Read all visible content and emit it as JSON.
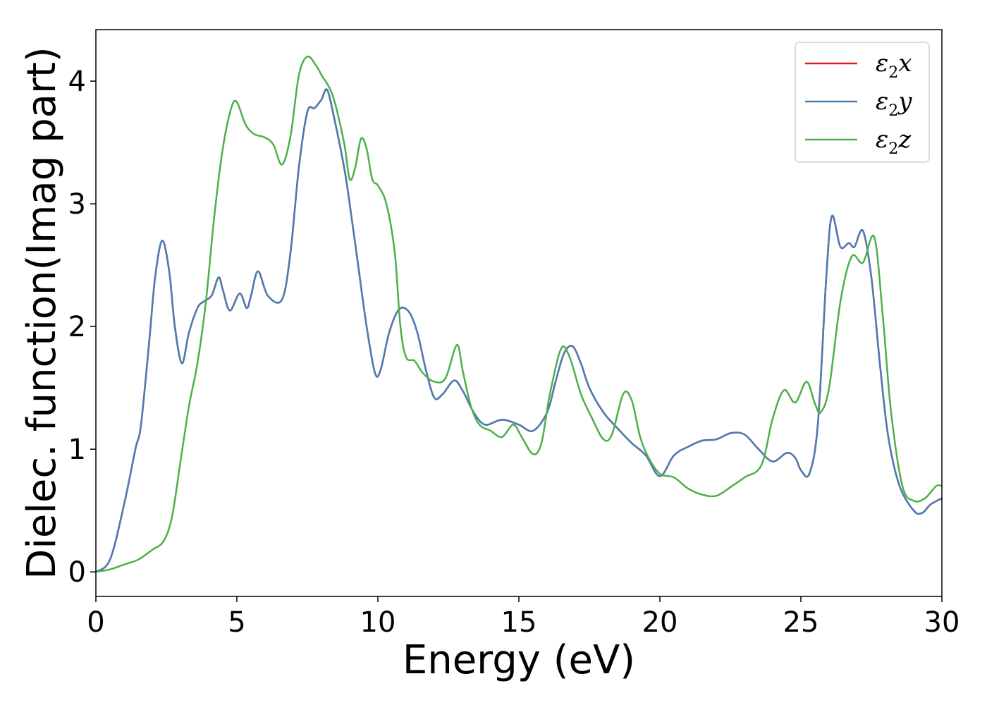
{
  "chart_data": {
    "type": "line",
    "title": "",
    "xlabel": "Energy (eV)",
    "ylabel": "Dielec. function(Imag part)",
    "xlim": [
      0,
      30
    ],
    "ylim": [
      -0.2,
      4.42
    ],
    "xticks": [
      "0",
      "5",
      "10",
      "15",
      "20",
      "25",
      "30"
    ],
    "yticks": [
      "0",
      "1",
      "2",
      "3",
      "4"
    ],
    "grid": false,
    "legend_position": "top-right",
    "series": [
      {
        "name": "ε₂x",
        "legend_main": "ε",
        "legend_sub": "2",
        "legend_tail": "x",
        "color": "#e41a1c",
        "points": [
          [
            0,
            0
          ],
          [
            0.5,
            0.1
          ],
          [
            1,
            0.55
          ],
          [
            1.4,
            1.0
          ],
          [
            1.6,
            1.2
          ],
          [
            1.9,
            1.9
          ],
          [
            2.1,
            2.4
          ],
          [
            2.35,
            2.7
          ],
          [
            2.6,
            2.45
          ],
          [
            2.8,
            2.0
          ],
          [
            3.05,
            1.7
          ],
          [
            3.3,
            1.95
          ],
          [
            3.6,
            2.15
          ],
          [
            3.8,
            2.2
          ],
          [
            4.1,
            2.25
          ],
          [
            4.35,
            2.4
          ],
          [
            4.5,
            2.3
          ],
          [
            4.75,
            2.13
          ],
          [
            5.1,
            2.27
          ],
          [
            5.35,
            2.15
          ],
          [
            5.5,
            2.25
          ],
          [
            5.75,
            2.45
          ],
          [
            6.1,
            2.25
          ],
          [
            6.6,
            2.22
          ],
          [
            6.9,
            2.6
          ],
          [
            7.2,
            3.3
          ],
          [
            7.5,
            3.75
          ],
          [
            7.75,
            3.78
          ],
          [
            8.0,
            3.85
          ],
          [
            8.2,
            3.93
          ],
          [
            8.45,
            3.7
          ],
          [
            8.8,
            3.3
          ],
          [
            9.0,
            3.0
          ],
          [
            9.3,
            2.5
          ],
          [
            9.6,
            2.0
          ],
          [
            9.9,
            1.62
          ],
          [
            10.1,
            1.65
          ],
          [
            10.4,
            1.95
          ],
          [
            10.75,
            2.14
          ],
          [
            11.1,
            2.12
          ],
          [
            11.4,
            1.95
          ],
          [
            11.7,
            1.65
          ],
          [
            12.0,
            1.42
          ],
          [
            12.3,
            1.45
          ],
          [
            12.7,
            1.56
          ],
          [
            13.0,
            1.48
          ],
          [
            13.4,
            1.3
          ],
          [
            13.8,
            1.2
          ],
          [
            14.4,
            1.24
          ],
          [
            15.0,
            1.2
          ],
          [
            15.5,
            1.15
          ],
          [
            16.0,
            1.3
          ],
          [
            16.3,
            1.55
          ],
          [
            16.6,
            1.78
          ],
          [
            16.9,
            1.84
          ],
          [
            17.2,
            1.7
          ],
          [
            17.5,
            1.5
          ],
          [
            18.0,
            1.3
          ],
          [
            18.5,
            1.17
          ],
          [
            19.0,
            1.05
          ],
          [
            19.5,
            0.95
          ],
          [
            20.0,
            0.78
          ],
          [
            20.5,
            0.95
          ],
          [
            21.0,
            1.02
          ],
          [
            21.5,
            1.07
          ],
          [
            22.0,
            1.08
          ],
          [
            22.5,
            1.13
          ],
          [
            23.0,
            1.12
          ],
          [
            23.5,
            1.0
          ],
          [
            24.0,
            0.9
          ],
          [
            24.5,
            0.97
          ],
          [
            24.8,
            0.93
          ],
          [
            25.0,
            0.83
          ],
          [
            25.3,
            0.8
          ],
          [
            25.6,
            1.2
          ],
          [
            25.9,
            2.4
          ],
          [
            26.1,
            2.9
          ],
          [
            26.4,
            2.65
          ],
          [
            26.7,
            2.68
          ],
          [
            26.9,
            2.65
          ],
          [
            27.2,
            2.78
          ],
          [
            27.5,
            2.4
          ],
          [
            27.8,
            1.7
          ],
          [
            28.1,
            1.1
          ],
          [
            28.5,
            0.7
          ],
          [
            29.0,
            0.5
          ],
          [
            29.3,
            0.48
          ],
          [
            29.6,
            0.55
          ],
          [
            30.0,
            0.6
          ]
        ]
      },
      {
        "name": "ε₂y",
        "legend_main": "ε",
        "legend_sub": "2",
        "legend_tail": "y",
        "color": "#4a7db5",
        "points": [
          [
            0,
            0
          ],
          [
            0.5,
            0.1
          ],
          [
            1,
            0.55
          ],
          [
            1.4,
            1.0
          ],
          [
            1.6,
            1.2
          ],
          [
            1.9,
            1.9
          ],
          [
            2.1,
            2.4
          ],
          [
            2.35,
            2.7
          ],
          [
            2.6,
            2.45
          ],
          [
            2.8,
            2.0
          ],
          [
            3.05,
            1.7
          ],
          [
            3.3,
            1.95
          ],
          [
            3.6,
            2.15
          ],
          [
            3.8,
            2.2
          ],
          [
            4.1,
            2.25
          ],
          [
            4.35,
            2.4
          ],
          [
            4.5,
            2.3
          ],
          [
            4.75,
            2.13
          ],
          [
            5.1,
            2.27
          ],
          [
            5.35,
            2.15
          ],
          [
            5.5,
            2.25
          ],
          [
            5.75,
            2.45
          ],
          [
            6.1,
            2.25
          ],
          [
            6.6,
            2.22
          ],
          [
            6.9,
            2.6
          ],
          [
            7.2,
            3.3
          ],
          [
            7.5,
            3.75
          ],
          [
            7.75,
            3.78
          ],
          [
            8.0,
            3.85
          ],
          [
            8.2,
            3.93
          ],
          [
            8.45,
            3.7
          ],
          [
            8.8,
            3.3
          ],
          [
            9.0,
            3.0
          ],
          [
            9.3,
            2.5
          ],
          [
            9.6,
            2.0
          ],
          [
            9.9,
            1.62
          ],
          [
            10.1,
            1.65
          ],
          [
            10.4,
            1.95
          ],
          [
            10.75,
            2.14
          ],
          [
            11.1,
            2.12
          ],
          [
            11.4,
            1.95
          ],
          [
            11.7,
            1.65
          ],
          [
            12.0,
            1.42
          ],
          [
            12.3,
            1.45
          ],
          [
            12.7,
            1.56
          ],
          [
            13.0,
            1.48
          ],
          [
            13.4,
            1.3
          ],
          [
            13.8,
            1.2
          ],
          [
            14.4,
            1.24
          ],
          [
            15.0,
            1.2
          ],
          [
            15.5,
            1.15
          ],
          [
            16.0,
            1.3
          ],
          [
            16.3,
            1.55
          ],
          [
            16.6,
            1.78
          ],
          [
            16.9,
            1.84
          ],
          [
            17.2,
            1.7
          ],
          [
            17.5,
            1.5
          ],
          [
            18.0,
            1.3
          ],
          [
            18.5,
            1.17
          ],
          [
            19.0,
            1.05
          ],
          [
            19.5,
            0.95
          ],
          [
            20.0,
            0.78
          ],
          [
            20.5,
            0.95
          ],
          [
            21.0,
            1.02
          ],
          [
            21.5,
            1.07
          ],
          [
            22.0,
            1.08
          ],
          [
            22.5,
            1.13
          ],
          [
            23.0,
            1.12
          ],
          [
            23.5,
            1.0
          ],
          [
            24.0,
            0.9
          ],
          [
            24.5,
            0.97
          ],
          [
            24.8,
            0.93
          ],
          [
            25.0,
            0.83
          ],
          [
            25.3,
            0.8
          ],
          [
            25.6,
            1.2
          ],
          [
            25.9,
            2.4
          ],
          [
            26.1,
            2.9
          ],
          [
            26.4,
            2.65
          ],
          [
            26.7,
            2.68
          ],
          [
            26.9,
            2.65
          ],
          [
            27.2,
            2.78
          ],
          [
            27.5,
            2.4
          ],
          [
            27.8,
            1.7
          ],
          [
            28.1,
            1.1
          ],
          [
            28.5,
            0.7
          ],
          [
            29.0,
            0.5
          ],
          [
            29.3,
            0.48
          ],
          [
            29.6,
            0.55
          ],
          [
            30.0,
            0.6
          ]
        ]
      },
      {
        "name": "ε₂z",
        "legend_main": "ε",
        "legend_sub": "2",
        "legend_tail": "z",
        "color": "#4daf4a",
        "points": [
          [
            0,
            0
          ],
          [
            0.5,
            0.02
          ],
          [
            1,
            0.06
          ],
          [
            1.5,
            0.1
          ],
          [
            2.0,
            0.18
          ],
          [
            2.4,
            0.25
          ],
          [
            2.7,
            0.45
          ],
          [
            3.0,
            0.9
          ],
          [
            3.3,
            1.35
          ],
          [
            3.6,
            1.7
          ],
          [
            3.9,
            2.2
          ],
          [
            4.2,
            2.9
          ],
          [
            4.5,
            3.45
          ],
          [
            4.8,
            3.78
          ],
          [
            5.0,
            3.83
          ],
          [
            5.3,
            3.65
          ],
          [
            5.6,
            3.57
          ],
          [
            6.0,
            3.54
          ],
          [
            6.3,
            3.48
          ],
          [
            6.6,
            3.32
          ],
          [
            6.9,
            3.55
          ],
          [
            7.2,
            4.05
          ],
          [
            7.5,
            4.2
          ],
          [
            7.8,
            4.13
          ],
          [
            8.0,
            4.05
          ],
          [
            8.4,
            3.88
          ],
          [
            8.8,
            3.5
          ],
          [
            9.0,
            3.2
          ],
          [
            9.2,
            3.3
          ],
          [
            9.4,
            3.53
          ],
          [
            9.6,
            3.45
          ],
          [
            9.8,
            3.2
          ],
          [
            10.0,
            3.15
          ],
          [
            10.3,
            3.0
          ],
          [
            10.6,
            2.6
          ],
          [
            10.8,
            2.0
          ],
          [
            11.0,
            1.75
          ],
          [
            11.3,
            1.72
          ],
          [
            11.6,
            1.62
          ],
          [
            12.0,
            1.55
          ],
          [
            12.4,
            1.58
          ],
          [
            12.8,
            1.85
          ],
          [
            13.0,
            1.65
          ],
          [
            13.3,
            1.35
          ],
          [
            13.6,
            1.2
          ],
          [
            14.0,
            1.15
          ],
          [
            14.4,
            1.1
          ],
          [
            14.8,
            1.2
          ],
          [
            15.1,
            1.1
          ],
          [
            15.5,
            0.96
          ],
          [
            15.8,
            1.05
          ],
          [
            16.1,
            1.45
          ],
          [
            16.5,
            1.82
          ],
          [
            16.8,
            1.75
          ],
          [
            17.2,
            1.45
          ],
          [
            17.6,
            1.25
          ],
          [
            18.0,
            1.08
          ],
          [
            18.3,
            1.12
          ],
          [
            18.7,
            1.45
          ],
          [
            19.0,
            1.4
          ],
          [
            19.3,
            1.1
          ],
          [
            19.6,
            0.93
          ],
          [
            20.0,
            0.8
          ],
          [
            20.5,
            0.77
          ],
          [
            21.0,
            0.68
          ],
          [
            21.5,
            0.63
          ],
          [
            22.0,
            0.62
          ],
          [
            22.5,
            0.69
          ],
          [
            23.0,
            0.77
          ],
          [
            23.6,
            0.87
          ],
          [
            24.0,
            1.25
          ],
          [
            24.4,
            1.48
          ],
          [
            24.8,
            1.38
          ],
          [
            25.2,
            1.55
          ],
          [
            25.5,
            1.37
          ],
          [
            25.7,
            1.3
          ],
          [
            26.0,
            1.5
          ],
          [
            26.4,
            2.2
          ],
          [
            26.8,
            2.57
          ],
          [
            27.2,
            2.52
          ],
          [
            27.6,
            2.73
          ],
          [
            27.9,
            2.1
          ],
          [
            28.2,
            1.3
          ],
          [
            28.6,
            0.7
          ],
          [
            29.0,
            0.58
          ],
          [
            29.4,
            0.6
          ],
          [
            29.8,
            0.7
          ],
          [
            30.0,
            0.7
          ]
        ]
      }
    ]
  }
}
